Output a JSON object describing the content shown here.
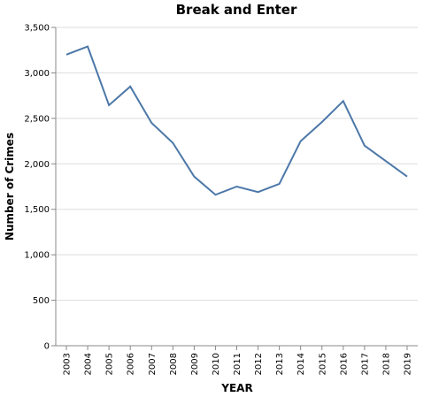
{
  "chart_data": {
    "type": "line",
    "title": "Break and Enter",
    "xlabel": "YEAR",
    "ylabel": "Number of Crimes",
    "x": [
      "2003",
      "2004",
      "2005",
      "2006",
      "2007",
      "2008",
      "2009",
      "2010",
      "2011",
      "2012",
      "2013",
      "2014",
      "2015",
      "2016",
      "2017",
      "2018",
      "2019"
    ],
    "series": [
      {
        "values": [
          3200,
          3290,
          2645,
          2850,
          2450,
          2230,
          1860,
          1660,
          1750,
          1690,
          1780,
          2250,
          2460,
          2690,
          2200,
          2030,
          1860
        ],
        "color": "#4c78a8"
      }
    ],
    "ylim": [
      0,
      3500
    ],
    "yticks": [
      0,
      500,
      1000,
      1500,
      2000,
      2500,
      3000,
      3500
    ],
    "ytick_labels": [
      "0",
      "500",
      "1,000",
      "1,500",
      "2,000",
      "2,500",
      "3,000",
      "3,500"
    ],
    "grid": true
  }
}
